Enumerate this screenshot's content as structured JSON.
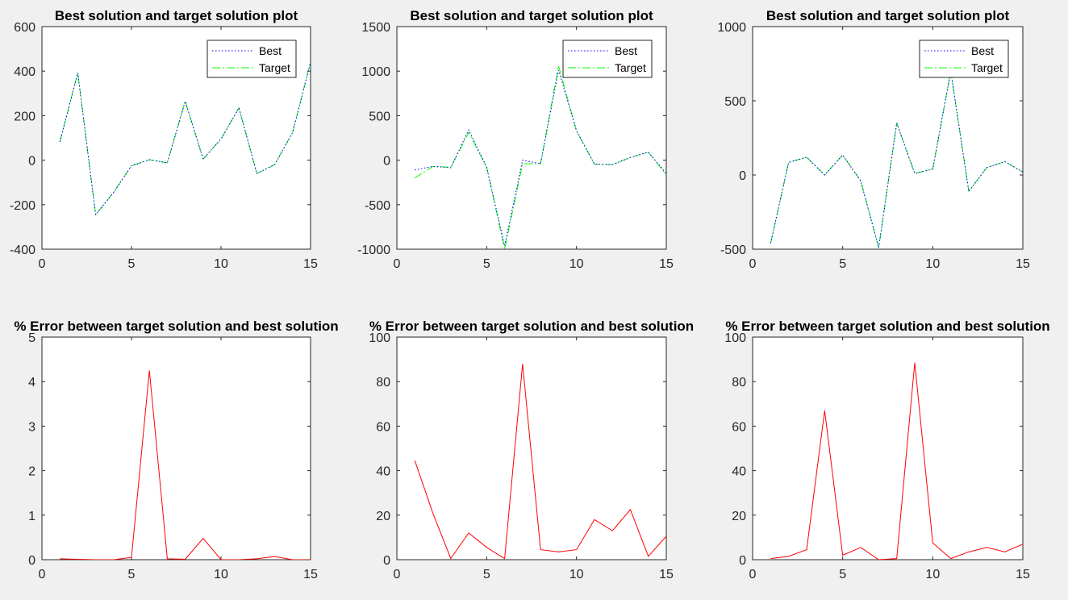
{
  "colors": {
    "background": "#f0f0f0",
    "axes_bg": "#ffffff",
    "axis": "#262626",
    "best": "#0000ff",
    "target": "#00ff00",
    "error": "#ff0000"
  },
  "chart_data": [
    {
      "type": "line",
      "title": "Best solution and target solution plot",
      "xlabel": "",
      "ylabel": "",
      "xlim": [
        0,
        15
      ],
      "ylim": [
        -400,
        600
      ],
      "xticks": [
        0,
        5,
        10,
        15
      ],
      "yticks": [
        -400,
        -200,
        0,
        200,
        400,
        600
      ],
      "grid": false,
      "legend": "top-right",
      "x": [
        1,
        2,
        3,
        4,
        5,
        6,
        7,
        8,
        9,
        10,
        11,
        12,
        13,
        14,
        15
      ],
      "series": [
        {
          "name": "Best",
          "color": "#0000ff",
          "style": "dotted",
          "values": [
            82,
            392,
            -245,
            -145,
            -25,
            2,
            -12,
            265,
            5,
            95,
            235,
            -60,
            -20,
            125,
            440
          ]
        },
        {
          "name": "Target",
          "color": "#00ff00",
          "style": "dashdot",
          "values": [
            82,
            392,
            -245,
            -145,
            -25,
            2,
            -12,
            265,
            5,
            95,
            235,
            -60,
            -20,
            125,
            440
          ]
        }
      ]
    },
    {
      "type": "line",
      "title": "Best solution and target solution plot",
      "xlabel": "",
      "ylabel": "",
      "xlim": [
        0,
        15
      ],
      "ylim": [
        -1000,
        1500
      ],
      "xticks": [
        0,
        5,
        10,
        15
      ],
      "yticks": [
        -1000,
        -500,
        0,
        500,
        1000,
        1500
      ],
      "grid": false,
      "legend": "top-right",
      "x": [
        1,
        2,
        3,
        4,
        5,
        6,
        7,
        8,
        9,
        10,
        11,
        12,
        13,
        14,
        15
      ],
      "series": [
        {
          "name": "Best",
          "color": "#0000ff",
          "style": "dotted",
          "values": [
            -110,
            -70,
            -85,
            340,
            -80,
            -960,
            0,
            -40,
            1010,
            330,
            -45,
            -50,
            30,
            90,
            -150
          ]
        },
        {
          "name": "Target",
          "color": "#00ff00",
          "style": "dashdot",
          "values": [
            -200,
            -70,
            -80,
            310,
            -80,
            -1000,
            -40,
            -40,
            1060,
            330,
            -45,
            -50,
            30,
            90,
            -165
          ]
        }
      ]
    },
    {
      "type": "line",
      "title": "Best solution and target solution plot",
      "xlabel": "",
      "ylabel": "",
      "xlim": [
        0,
        15
      ],
      "ylim": [
        -500,
        1000
      ],
      "xticks": [
        0,
        5,
        10,
        15
      ],
      "yticks": [
        -500,
        0,
        500,
        1000
      ],
      "grid": false,
      "legend": "top-right",
      "x": [
        1,
        2,
        3,
        4,
        5,
        6,
        7,
        8,
        9,
        10,
        11,
        12,
        13,
        14,
        15
      ],
      "series": [
        {
          "name": "Best",
          "color": "#0000ff",
          "style": "dotted",
          "values": [
            -460,
            85,
            120,
            0,
            135,
            -40,
            -490,
            350,
            10,
            40,
            700,
            -110,
            50,
            90,
            20
          ]
        },
        {
          "name": "Target",
          "color": "#00ff00",
          "style": "dashdot",
          "values": [
            -460,
            85,
            120,
            0,
            135,
            -40,
            -490,
            350,
            10,
            40,
            700,
            -110,
            50,
            90,
            20
          ]
        }
      ]
    },
    {
      "type": "line",
      "title": "% Error between target solution and best solution",
      "xlabel": "",
      "ylabel": "",
      "xlim": [
        0,
        15
      ],
      "ylim": [
        0,
        5
      ],
      "xticks": [
        0,
        5,
        10,
        15
      ],
      "yticks": [
        0,
        1,
        2,
        3,
        4,
        5
      ],
      "grid": false,
      "x": [
        1,
        2,
        3,
        4,
        5,
        6,
        7,
        8,
        9,
        10,
        11,
        12,
        13,
        14,
        15
      ],
      "series": [
        {
          "color": "#ff0000",
          "style": "solid",
          "values": [
            0.02,
            0.01,
            0.0,
            0.0,
            0.05,
            4.25,
            0.02,
            0.01,
            0.48,
            0.0,
            0.0,
            0.02,
            0.07,
            0.0,
            0.0
          ]
        }
      ]
    },
    {
      "type": "line",
      "title": "% Error between target solution and best solution",
      "xlabel": "",
      "ylabel": "",
      "xlim": [
        0,
        15
      ],
      "ylim": [
        0,
        100
      ],
      "xticks": [
        0,
        5,
        10,
        15
      ],
      "yticks": [
        0,
        20,
        40,
        60,
        80,
        100
      ],
      "grid": false,
      "x": [
        1,
        2,
        3,
        4,
        5,
        6,
        7,
        8,
        9,
        10,
        11,
        12,
        13,
        14,
        15
      ],
      "series": [
        {
          "color": "#ff0000",
          "style": "solid",
          "values": [
            44.5,
            21,
            0.5,
            12,
            5.5,
            0.5,
            88,
            4.5,
            3.5,
            4.5,
            18,
            13,
            22.5,
            1.5,
            10.5
          ]
        }
      ]
    },
    {
      "type": "line",
      "title": "% Error between target solution and best solution",
      "xlabel": "",
      "ylabel": "",
      "xlim": [
        0,
        15
      ],
      "ylim": [
        0,
        100
      ],
      "xticks": [
        0,
        5,
        10,
        15
      ],
      "yticks": [
        0,
        20,
        40,
        60,
        80,
        100
      ],
      "grid": false,
      "x": [
        1,
        2,
        3,
        4,
        5,
        6,
        7,
        8,
        9,
        10,
        11,
        12,
        13,
        14,
        15
      ],
      "series": [
        {
          "color": "#ff0000",
          "style": "solid",
          "values": [
            0.5,
            1.5,
            4.5,
            67,
            2,
            5.5,
            0,
            0.5,
            88.5,
            7.5,
            0.5,
            3.5,
            5.5,
            3.5,
            7
          ]
        }
      ]
    }
  ]
}
